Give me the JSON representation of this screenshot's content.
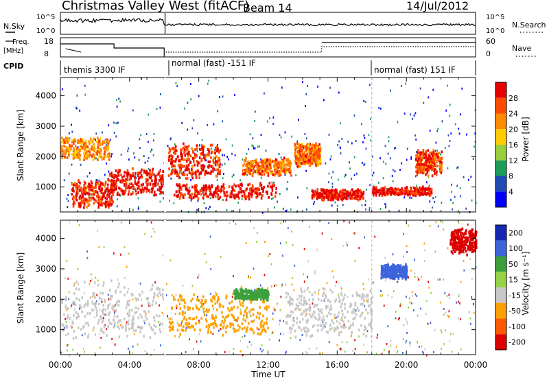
{
  "header": {
    "title": "Christmas Valley West (fitACF)",
    "beam": "Beam 14",
    "date": "14/Jul/2012"
  },
  "noise_panel": {
    "left_label": "N.Sky",
    "right_label": "N.Search",
    "left_ticks": [
      "10^5",
      "10^0"
    ],
    "right_ticks": [
      "10^5",
      "10^0"
    ]
  },
  "freq_panel": {
    "left_label_1": "Freq.",
    "left_label_2": "[MHz]",
    "right_label": "Nave",
    "left_ticks": [
      "18",
      "8"
    ],
    "right_ticks": [
      "60",
      "0"
    ]
  },
  "cpid": {
    "label": "CPID",
    "segments": [
      {
        "text": "themis 3300 IF",
        "start_hour": 0,
        "end_hour": 6.1
      },
      {
        "text": "normal (fast) -151 IF",
        "start_hour": 6.1,
        "end_hour": 18.0
      },
      {
        "text": "normal (fast) 151 IF",
        "start_hour": 18.0,
        "end_hour": 24
      }
    ]
  },
  "power_panel": {
    "ylabel": "Slant Range [km]",
    "colorbar_label": "Power [dB]",
    "colorbar_ticks": [
      "28",
      "24",
      "20",
      "16",
      "12",
      "8",
      "4"
    ],
    "colors": [
      "#e60000",
      "#ff4b00",
      "#ff8a00",
      "#ffcc00",
      "#9ace3c",
      "#1e9c5a",
      "#1e4cb4",
      "#0000ff"
    ]
  },
  "velocity_panel": {
    "ylabel": "Slant Range [km]",
    "colorbar_label": "Velocity [m s⁻¹]",
    "colorbar_ticks": [
      "200",
      "100",
      "50",
      "15",
      "-15",
      "-50",
      "-100",
      "-200"
    ],
    "colors": [
      "#1428b4",
      "#3c64dc",
      "#3ca03c",
      "#96d246",
      "#c8c8c8",
      "#ffa000",
      "#ff5a00",
      "#dc0000"
    ]
  },
  "x_axis": {
    "label": "Time UT",
    "ticks": [
      "00:00",
      "04:00",
      "08:00",
      "12:00",
      "16:00",
      "20:00",
      "00:00"
    ]
  },
  "chart_data": [
    {
      "type": "heatmap",
      "title": "Christmas Valley West (fitACF)",
      "xlabel": "Time UT",
      "ylabel": "Slant Range [km]",
      "xlim": [
        0,
        24
      ],
      "ylim": [
        180,
        4600
      ],
      "yticks": [
        1000,
        2000,
        3000,
        4000
      ],
      "colorbar": {
        "label": "Power [dB]",
        "ticks": [
          4,
          8,
          12,
          16,
          20,
          24,
          28
        ]
      },
      "features": [
        {
          "t0": 0.0,
          "t1": 2.8,
          "r0": 1900,
          "r1": 2700,
          "value": 18
        },
        {
          "t0": 0.6,
          "t1": 3.0,
          "r0": 300,
          "r1": 1300,
          "value": 24
        },
        {
          "t0": 2.8,
          "t1": 6.0,
          "r0": 700,
          "r1": 1700,
          "value": 26
        },
        {
          "t0": 6.2,
          "t1": 9.2,
          "r0": 1300,
          "r1": 2500,
          "value": 24
        },
        {
          "t0": 6.5,
          "t1": 12.5,
          "r0": 600,
          "r1": 1200,
          "value": 26
        },
        {
          "t0": 10.5,
          "t1": 13.3,
          "r0": 1400,
          "r1": 2000,
          "value": 20
        },
        {
          "t0": 13.5,
          "t1": 15.0,
          "r0": 1700,
          "r1": 2500,
          "value": 20
        },
        {
          "t0": 14.5,
          "t1": 17.5,
          "r0": 600,
          "r1": 1000,
          "value": 26
        },
        {
          "t0": 18.0,
          "t1": 21.5,
          "r0": 750,
          "r1": 1050,
          "value": 26
        },
        {
          "t0": 20.5,
          "t1": 22.0,
          "r0": 1400,
          "r1": 2300,
          "value": 22
        }
      ]
    },
    {
      "type": "heatmap",
      "xlabel": "Time UT",
      "ylabel": "Slant Range [km]",
      "xlim": [
        0,
        24
      ],
      "ylim": [
        180,
        4600
      ],
      "yticks": [
        1000,
        2000,
        3000,
        4000
      ],
      "colorbar": {
        "label": "Velocity [m s⁻¹]",
        "ticks": [
          -200,
          -100,
          -50,
          -15,
          15,
          50,
          100,
          200
        ]
      },
      "features": [
        {
          "t0": 0.0,
          "t1": 6.0,
          "r0": 700,
          "r1": 2700,
          "value": 0
        },
        {
          "t0": 6.2,
          "t1": 12.0,
          "r0": 800,
          "r1": 2300,
          "value": -40
        },
        {
          "t0": 10.0,
          "t1": 12.0,
          "r0": 2000,
          "r1": 2400,
          "value": 60
        },
        {
          "t0": 13.0,
          "t1": 18.0,
          "r0": 700,
          "r1": 2500,
          "value": 0
        },
        {
          "t0": 18.5,
          "t1": 20.0,
          "r0": 2700,
          "r1": 3200,
          "value": 180
        },
        {
          "t0": 22.5,
          "t1": 24.0,
          "r0": 3500,
          "r1": 4400,
          "value": -180
        }
      ]
    }
  ]
}
